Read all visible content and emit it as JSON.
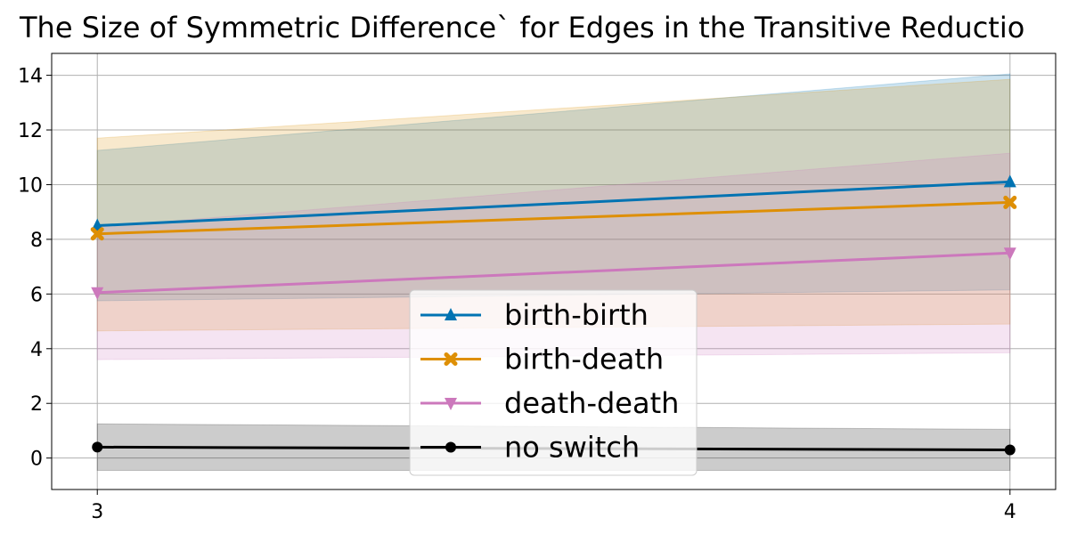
{
  "chart_data": {
    "type": "line",
    "title": "The Size of Symmetric Difference` for Edges in the Transitive Reductio",
    "xlabel": "",
    "ylabel": "",
    "x": [
      3,
      4
    ],
    "x_ticks": [
      "3",
      "4"
    ],
    "xlim": [
      2.95,
      4.05
    ],
    "ylim": [
      -1.15,
      14.8
    ],
    "y_ticks": [
      "0",
      "2",
      "4",
      "6",
      "8",
      "10",
      "12",
      "14"
    ],
    "y_tick_values": [
      0,
      2,
      4,
      6,
      8,
      10,
      12,
      14
    ],
    "grid": true,
    "legend_position": "bottom-center",
    "series": [
      {
        "name": "birth-birth",
        "values": [
          8.5,
          10.1
        ],
        "lower": [
          5.75,
          6.15
        ],
        "upper": [
          11.25,
          14.05
        ],
        "color": "#0173b2",
        "marker": "triangle-up"
      },
      {
        "name": "birth-death",
        "values": [
          8.2,
          9.35
        ],
        "lower": [
          4.65,
          4.9
        ],
        "upper": [
          11.7,
          13.85
        ],
        "color": "#de8f05",
        "marker": "x"
      },
      {
        "name": "death-death",
        "values": [
          6.05,
          7.5
        ],
        "lower": [
          3.6,
          3.85
        ],
        "upper": [
          8.45,
          11.15
        ],
        "color": "#cc78bc",
        "marker": "triangle-down"
      },
      {
        "name": "no switch",
        "values": [
          0.4,
          0.3
        ],
        "lower": [
          -0.45,
          -0.45
        ],
        "upper": [
          1.25,
          1.05
        ],
        "color": "#000000",
        "marker": "circle"
      }
    ]
  }
}
